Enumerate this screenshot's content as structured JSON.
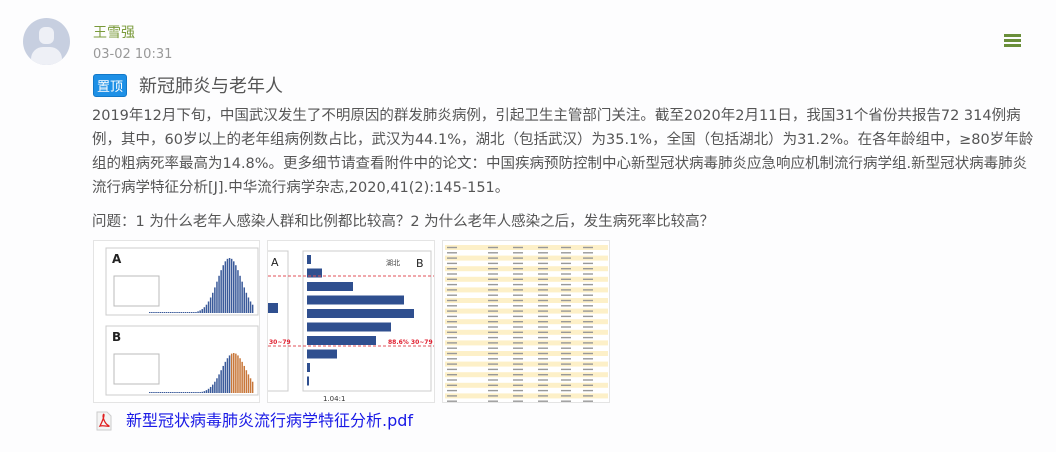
{
  "post": {
    "author": "王雪强",
    "time": "03-02 10:31",
    "badge": "置顶",
    "title": "新冠肺炎与老年人",
    "content": "2019年12月下旬，中国武汉发生了不明原因的群发肺炎病例，引起卫生主管部门关注。截至2020年2月11日，我国31个省份共报告72 314例病例，其中，60岁以上的老年组病例数占比，武汉为44.1%，湖北（包括武汉）为35.1%，全国（包括湖北）为31.2%。在各年龄组中，≥80岁年龄组的粗病死率最高为14.8%。更多细节请查看附件中的论文：中国疾病预防控制中心新型冠状病毒肺炎应急响应机制流行病学组.新型冠状病毒肺炎流行病学特征分析[J].中华流行病学杂志,2020,41(2):145-151。",
    "question": "问题：1 为什么老年人感染人群和比例都比较高？2 为什么老年人感染之后，发生病死率比较高？",
    "images": [
      {
        "icon": "epidemic-curve-chart-image",
        "labels": [
          "A",
          "B"
        ]
      },
      {
        "icon": "age-distribution-bar-chart-image",
        "labels": [
          "A",
          "B",
          "湖北",
          "1.04:1",
          "30~79",
          "88.6% 30~79"
        ]
      },
      {
        "icon": "statistics-table-image"
      }
    ],
    "attachment": {
      "icon": "pdf-icon",
      "name": "新型冠状病毒肺炎流行病学特征分析.pdf"
    },
    "menu_icon": "hamburger-menu-icon",
    "colors": {
      "author": "#7a9a3a",
      "badge": "#1e90e6",
      "link": "#1a1ae6",
      "menu": "#6a8f3a"
    }
  }
}
